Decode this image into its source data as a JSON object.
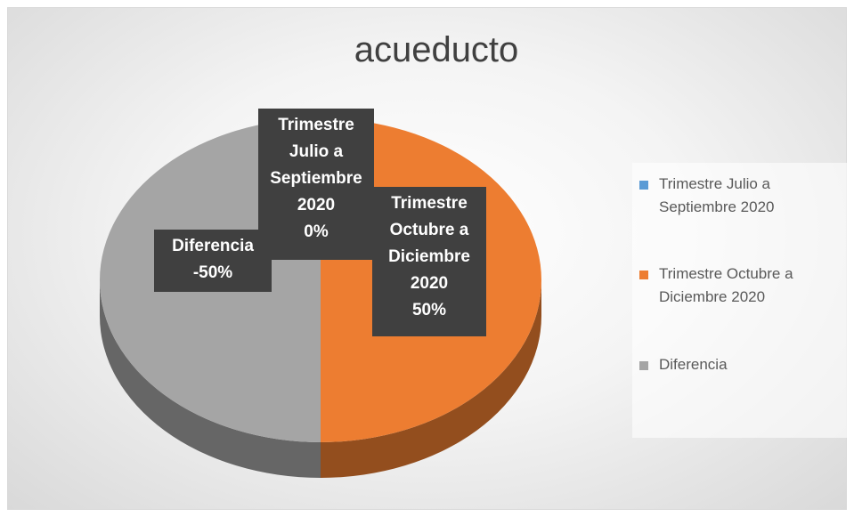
{
  "chart_data": {
    "type": "pie",
    "title": "acueducto",
    "categories": [
      "Trimestre Julio a Septiembre 2020",
      "Trimestre Octubre a Diciembre 2020",
      "Diferencia"
    ],
    "values": [
      0,
      50,
      -50
    ],
    "value_labels": [
      "0%",
      "50%",
      "-50%"
    ],
    "colors": [
      "#5b9bd5",
      "#ed7d31",
      "#a5a5a5"
    ]
  }
}
